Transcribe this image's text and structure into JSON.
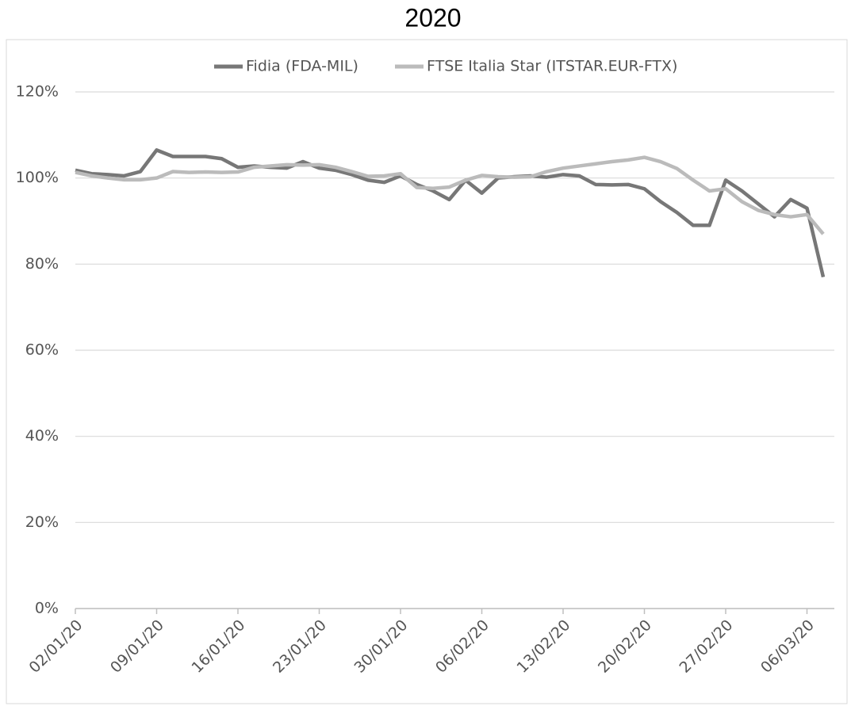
{
  "chart_data": {
    "type": "line",
    "title": "2020",
    "categories": [
      "02/01/20",
      null,
      null,
      null,
      null,
      "09/01/20",
      null,
      null,
      null,
      null,
      "16/01/20",
      null,
      null,
      null,
      null,
      "23/01/20",
      null,
      null,
      null,
      null,
      "30/01/20",
      null,
      null,
      null,
      null,
      "06/02/20",
      null,
      null,
      null,
      null,
      "13/02/20",
      null,
      null,
      null,
      null,
      "20/02/20",
      null,
      null,
      null,
      null,
      "27/02/20",
      null,
      null,
      null,
      null,
      "06/03/20",
      null
    ],
    "series": [
      {
        "name": "Fidia (FDA-MIL)",
        "color": "#777777",
        "values": [
          101.8,
          101,
          100.8,
          100.5,
          101.5,
          106.5,
          105,
          105,
          105,
          104.5,
          102.5,
          102.8,
          102.5,
          102.3,
          103.8,
          102.3,
          101.8,
          100.8,
          99.5,
          99,
          100.5,
          98.5,
          97,
          95,
          99.5,
          96.5,
          100,
          100.3,
          100.5,
          100.2,
          100.8,
          100.5,
          98.5,
          98.4,
          98.5,
          97.5,
          94.5,
          92,
          89,
          89,
          99.5,
          97,
          94,
          91,
          95,
          93,
          77
        ]
      },
      {
        "name": "FTSE Italia Star (ITSTAR.EUR-FTX)",
        "color": "#bbbbbb",
        "values": [
          101.3,
          100.5,
          100,
          99.6,
          99.6,
          100,
          101.5,
          101.3,
          101.4,
          101.3,
          101.4,
          102.5,
          102.8,
          103.1,
          103,
          103.1,
          102.5,
          101.5,
          100.4,
          100.5,
          101,
          97.8,
          97.6,
          97.9,
          99.5,
          100.6,
          100.3,
          100.2,
          100.3,
          101.5,
          102.3,
          102.8,
          103.3,
          103.8,
          104.2,
          104.8,
          103.8,
          102.2,
          99.5,
          97,
          97.5,
          94.5,
          92.5,
          91.5,
          91,
          91.5,
          87
        ]
      }
    ],
    "ylim": [
      0,
      120
    ],
    "yticks": [
      {
        "value": 0,
        "label": "0%"
      },
      {
        "value": 20,
        "label": "20%"
      },
      {
        "value": 40,
        "label": "40%"
      },
      {
        "value": 60,
        "label": "60%"
      },
      {
        "value": 80,
        "label": "80%"
      },
      {
        "value": 100,
        "label": "100%"
      },
      {
        "value": 120,
        "label": "120%"
      }
    ],
    "grid": true,
    "legend": "top"
  }
}
